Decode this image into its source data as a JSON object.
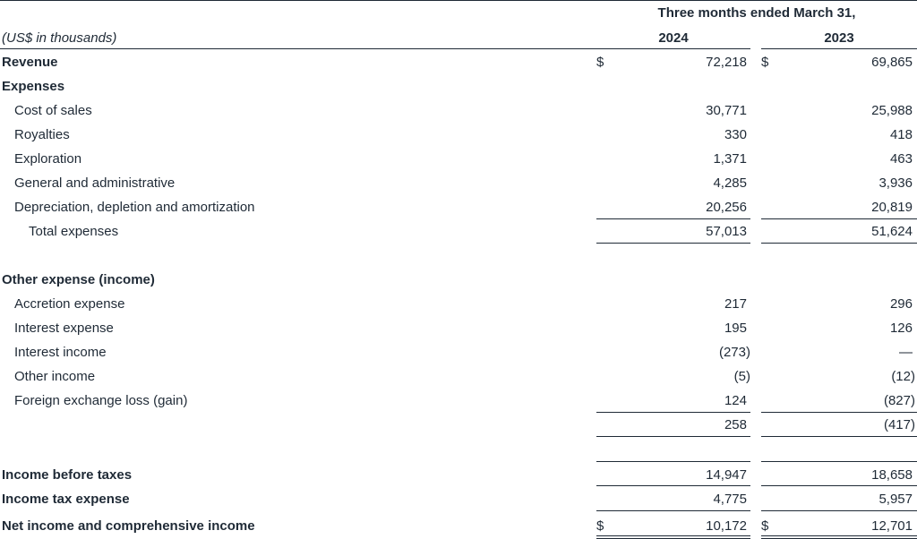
{
  "header": {
    "period_label": "Three months ended March 31,",
    "units_label": "(US$ in thousands)",
    "col_2024": "2024",
    "col_2023": "2023"
  },
  "rows": {
    "revenue": {
      "label": "Revenue",
      "cur": "$",
      "v2024": "72,218",
      "v2023": "69,865"
    },
    "expenses": {
      "label": "Expenses"
    },
    "cost_of_sales": {
      "label": "Cost of sales",
      "v2024": "30,771",
      "v2023": "25,988"
    },
    "royalties": {
      "label": "Royalties",
      "v2024": "330",
      "v2023": "418"
    },
    "exploration": {
      "label": "Exploration",
      "v2024": "1,371",
      "v2023": "463"
    },
    "g_and_a": {
      "label": "General and administrative",
      "v2024": "4,285",
      "v2023": "3,936"
    },
    "dda": {
      "label": "Depreciation, depletion and amortization",
      "v2024": "20,256",
      "v2023": "20,819"
    },
    "total_expenses": {
      "label": "Total expenses",
      "v2024": "57,013",
      "v2023": "51,624"
    },
    "other_expense": {
      "label": "Other expense (income)"
    },
    "accretion": {
      "label": "Accretion expense",
      "v2024": "217",
      "v2023": "296"
    },
    "interest_expense": {
      "label": "Interest expense",
      "v2024": "195",
      "v2023": "126"
    },
    "interest_income": {
      "label": "Interest income",
      "v2024": "(273)",
      "v2023": "—"
    },
    "other_income": {
      "label": "Other income",
      "v2024": "(5)",
      "v2023": "(12)"
    },
    "fx": {
      "label": "Foreign exchange loss (gain)",
      "v2024": "124",
      "v2023": "(827)"
    },
    "other_total": {
      "v2024": "258",
      "v2023": "(417)"
    },
    "income_before_taxes": {
      "label": "Income before taxes",
      "v2024": "14,947",
      "v2023": "18,658"
    },
    "income_tax": {
      "label": "Income tax expense",
      "v2024": "4,775",
      "v2023": "5,957"
    },
    "net_income": {
      "label": "Net income and comprehensive income",
      "cur": "$",
      "v2024": "10,172",
      "v2023": "12,701"
    }
  }
}
